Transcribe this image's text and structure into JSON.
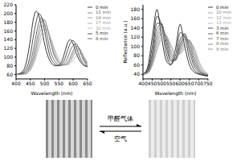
{
  "chart_data": [
    {
      "type": "line",
      "xlabel": "Wavelength (nm)",
      "x": [
        400,
        410,
        420,
        430,
        440,
        450,
        460,
        470,
        480,
        490,
        500,
        510,
        520,
        530,
        540,
        550,
        560,
        570,
        580,
        590,
        600,
        610,
        620,
        630,
        640,
        650
      ],
      "xlim": [
        400,
        650
      ],
      "xticks": [
        400,
        450,
        500,
        550,
        600,
        650
      ],
      "ylim": [
        50,
        220
      ],
      "yticks": [
        60,
        80,
        100,
        120,
        140,
        160,
        180,
        200,
        220
      ],
      "grid": false,
      "legend": "right",
      "series": [
        {
          "name": "0 min",
          "color": "#000000",
          "values": [
            60,
            62,
            65,
            75,
            100,
            140,
            185,
            205,
            195,
            165,
            130,
            105,
            90,
            82,
            80,
            82,
            90,
            110,
            132,
            140,
            130,
            110,
            95,
            85,
            80,
            78
          ]
        },
        {
          "name": "5 min",
          "color": "#222222",
          "values": [
            60,
            61,
            63,
            68,
            80,
            105,
            145,
            180,
            200,
            190,
            160,
            125,
            100,
            88,
            82,
            80,
            84,
            95,
            115,
            132,
            138,
            125,
            105,
            90,
            82,
            78
          ]
        },
        {
          "name": "8 min",
          "color": "#444444",
          "values": [
            60,
            60,
            62,
            65,
            72,
            88,
            115,
            150,
            180,
            190,
            175,
            145,
            115,
            97,
            87,
            82,
            81,
            86,
            98,
            115,
            127,
            130,
            120,
            102,
            88,
            80
          ]
        },
        {
          "name": "11 min",
          "color": "#666666",
          "values": [
            60,
            60,
            61,
            63,
            68,
            80,
            100,
            130,
            162,
            182,
            185,
            165,
            135,
            110,
            95,
            86,
            82,
            82,
            88,
            100,
            115,
            125,
            122,
            108,
            92,
            82
          ]
        },
        {
          "name": "14 min",
          "color": "#888888",
          "values": [
            60,
            60,
            60,
            62,
            66,
            75,
            92,
            118,
            148,
            168,
            175,
            165,
            140,
            115,
            98,
            88,
            83,
            82,
            85,
            94,
            108,
            118,
            120,
            110,
            95,
            84
          ]
        },
        {
          "name": "17 min",
          "color": "#999999",
          "values": [
            60,
            60,
            60,
            61,
            64,
            72,
            86,
            108,
            135,
            155,
            165,
            162,
            145,
            122,
            103,
            91,
            85,
            82,
            83,
            90,
            102,
            112,
            116,
            110,
            97,
            86
          ]
        },
        {
          "name": "20 min",
          "color": "#aaaaaa",
          "values": [
            60,
            60,
            60,
            61,
            63,
            70,
            82,
            100,
            122,
            142,
            153,
            155,
            145,
            128,
            110,
            96,
            88,
            84,
            83,
            86,
            94,
            102,
            108,
            106,
            98,
            88
          ]
        }
      ]
    },
    {
      "type": "line",
      "xlabel": "Wavelength (nm)",
      "ylabel": "Reflectance (a.u.)",
      "x": [
        400,
        425,
        450,
        475,
        500,
        525,
        550,
        575,
        600,
        625,
        650,
        675,
        700,
        725,
        750
      ],
      "xlim": [
        400,
        750
      ],
      "xticks": [
        400,
        450,
        500,
        550,
        600,
        650,
        700,
        750
      ],
      "ylim": [
        30,
        190
      ],
      "yticks": [
        40,
        60,
        80,
        100,
        120,
        140,
        160,
        180
      ],
      "grid": false,
      "legend": "right",
      "series": [
        {
          "name": "0 min",
          "color": "#000000",
          "values": [
            40,
            55,
            120,
            180,
            120,
            70,
            60,
            95,
            148,
            100,
            60,
            45,
            40,
            38,
            36
          ]
        },
        {
          "name": "3 min",
          "color": "#1a1a1a",
          "values": [
            40,
            50,
            100,
            165,
            145,
            85,
            62,
            80,
            130,
            120,
            75,
            50,
            42,
            38,
            36
          ]
        },
        {
          "name": "6 min",
          "color": "#333333",
          "values": [
            40,
            48,
            85,
            150,
            150,
            100,
            68,
            72,
            115,
            128,
            90,
            58,
            45,
            40,
            37
          ]
        },
        {
          "name": "7 min",
          "color": "#4d4d4d",
          "values": [
            40,
            46,
            78,
            138,
            148,
            110,
            72,
            70,
            105,
            125,
            100,
            65,
            48,
            40,
            37
          ]
        },
        {
          "name": "8 min",
          "color": "#666666",
          "values": [
            40,
            45,
            72,
            125,
            142,
            118,
            78,
            70,
            98,
            120,
            108,
            72,
            50,
            42,
            38
          ]
        },
        {
          "name": "9 min",
          "color": "#777777",
          "values": [
            40,
            44,
            68,
            115,
            135,
            122,
            85,
            72,
            92,
            115,
            112,
            80,
            54,
            43,
            38
          ]
        },
        {
          "name": "10 min",
          "color": "#888888",
          "values": [
            40,
            43,
            64,
            105,
            128,
            124,
            92,
            75,
            88,
            108,
            114,
            88,
            58,
            45,
            39
          ]
        },
        {
          "name": "12 min",
          "color": "#999999",
          "values": [
            40,
            42,
            60,
            95,
            120,
            122,
            100,
            80,
            85,
            100,
            112,
            95,
            65,
            48,
            40
          ]
        },
        {
          "name": "13 min",
          "color": "#aaaaaa",
          "values": [
            40,
            42,
            58,
            90,
            115,
            120,
            105,
            85,
            84,
            95,
            108,
            98,
            70,
            50,
            41
          ]
        }
      ]
    }
  ],
  "photo_labels": {
    "forward": "甲醛气体",
    "reverse": "空气"
  }
}
